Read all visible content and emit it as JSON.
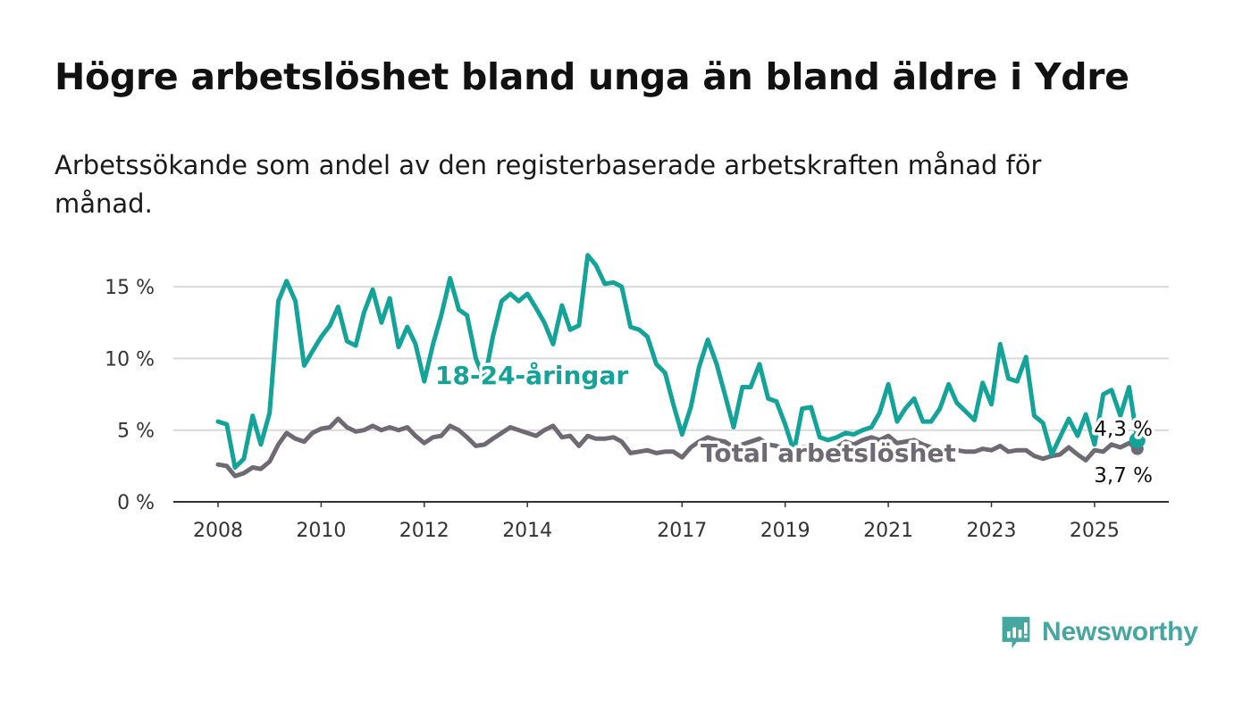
{
  "header": {
    "title": "Högre arbetslöshet bland unga än bland äldre i Ydre",
    "subtitle": "Arbetssökande som andel av den registerbaserade arbetskraften månad för månad."
  },
  "branding": {
    "logo_text": "Newsworthy",
    "color": "#46a6a0"
  },
  "chart_data": {
    "type": "line",
    "title": "Högre arbetslöshet bland unga än bland äldre i Ydre",
    "subtitle": "Arbetssökande som andel av den registerbaserade arbetskraften månad för månad.",
    "ylim": [
      0,
      17
    ],
    "yticks": [
      0,
      5,
      10,
      15
    ],
    "ytick_labels": [
      "0 %",
      "5 %",
      "10 %",
      "15 %"
    ],
    "xticks": [
      2008,
      2010,
      2012,
      2014,
      2017,
      2019,
      2021,
      2023,
      2025
    ],
    "xtick_labels": [
      "2008",
      "2010",
      "2012",
      "2014",
      "2017",
      "2019",
      "2021",
      "2023",
      "2025"
    ],
    "grid": true,
    "series": [
      {
        "name": "18-24-åringar",
        "color": "#13a398",
        "end_label": "4,3 %",
        "points": [
          [
            2008.0,
            5.6
          ],
          [
            2008.17,
            5.4
          ],
          [
            2008.33,
            2.4
          ],
          [
            2008.5,
            3.0
          ],
          [
            2008.67,
            6.0
          ],
          [
            2008.83,
            4.0
          ],
          [
            2009.0,
            6.2
          ],
          [
            2009.17,
            14.0
          ],
          [
            2009.33,
            15.4
          ],
          [
            2009.5,
            14.0
          ],
          [
            2009.67,
            9.5
          ],
          [
            2009.83,
            10.5
          ],
          [
            2010.0,
            11.5
          ],
          [
            2010.17,
            12.3
          ],
          [
            2010.33,
            13.6
          ],
          [
            2010.5,
            11.2
          ],
          [
            2010.67,
            10.9
          ],
          [
            2010.83,
            13.2
          ],
          [
            2011.0,
            14.8
          ],
          [
            2011.17,
            12.5
          ],
          [
            2011.33,
            14.2
          ],
          [
            2011.5,
            10.8
          ],
          [
            2011.67,
            12.2
          ],
          [
            2011.83,
            11.0
          ],
          [
            2012.0,
            8.4
          ],
          [
            2012.17,
            11.0
          ],
          [
            2012.33,
            13.0
          ],
          [
            2012.5,
            15.6
          ],
          [
            2012.67,
            13.4
          ],
          [
            2012.83,
            13.0
          ],
          [
            2013.0,
            10.0
          ],
          [
            2013.17,
            8.5
          ],
          [
            2013.33,
            11.5
          ],
          [
            2013.5,
            14.0
          ],
          [
            2013.67,
            14.5
          ],
          [
            2013.83,
            14.0
          ],
          [
            2014.0,
            14.5
          ],
          [
            2014.17,
            13.5
          ],
          [
            2014.33,
            12.5
          ],
          [
            2014.5,
            11.0
          ],
          [
            2014.67,
            13.7
          ],
          [
            2014.83,
            12.0
          ],
          [
            2015.0,
            12.3
          ],
          [
            2015.17,
            17.2
          ],
          [
            2015.33,
            16.5
          ],
          [
            2015.5,
            15.2
          ],
          [
            2015.67,
            15.3
          ],
          [
            2015.83,
            15.0
          ],
          [
            2016.0,
            12.2
          ],
          [
            2016.17,
            12.0
          ],
          [
            2016.33,
            11.5
          ],
          [
            2016.5,
            9.6
          ],
          [
            2016.67,
            9.0
          ],
          [
            2016.83,
            6.8
          ],
          [
            2017.0,
            4.7
          ],
          [
            2017.17,
            6.6
          ],
          [
            2017.33,
            9.4
          ],
          [
            2017.5,
            11.3
          ],
          [
            2017.67,
            9.6
          ],
          [
            2017.83,
            7.5
          ],
          [
            2018.0,
            5.2
          ],
          [
            2018.17,
            8.0
          ],
          [
            2018.33,
            8.0
          ],
          [
            2018.5,
            9.6
          ],
          [
            2018.67,
            7.2
          ],
          [
            2018.83,
            7.0
          ],
          [
            2019.0,
            5.4
          ],
          [
            2019.17,
            3.5
          ],
          [
            2019.33,
            6.5
          ],
          [
            2019.5,
            6.6
          ],
          [
            2019.67,
            4.5
          ],
          [
            2019.83,
            4.3
          ],
          [
            2020.0,
            4.5
          ],
          [
            2020.17,
            4.8
          ],
          [
            2020.33,
            4.7
          ],
          [
            2020.5,
            5.0
          ],
          [
            2020.67,
            5.2
          ],
          [
            2020.83,
            6.2
          ],
          [
            2021.0,
            8.2
          ],
          [
            2021.17,
            5.6
          ],
          [
            2021.33,
            6.5
          ],
          [
            2021.5,
            7.2
          ],
          [
            2021.67,
            5.6
          ],
          [
            2021.83,
            5.6
          ],
          [
            2022.0,
            6.5
          ],
          [
            2022.17,
            8.2
          ],
          [
            2022.33,
            6.9
          ],
          [
            2022.5,
            6.3
          ],
          [
            2022.67,
            5.7
          ],
          [
            2022.83,
            8.3
          ],
          [
            2023.0,
            6.8
          ],
          [
            2023.17,
            11.0
          ],
          [
            2023.33,
            8.6
          ],
          [
            2023.5,
            8.4
          ],
          [
            2023.67,
            10.1
          ],
          [
            2023.83,
            6.0
          ],
          [
            2024.0,
            5.5
          ],
          [
            2024.17,
            3.3
          ],
          [
            2024.33,
            4.5
          ],
          [
            2024.5,
            5.8
          ],
          [
            2024.67,
            4.6
          ],
          [
            2024.83,
            6.1
          ],
          [
            2025.0,
            4.0
          ],
          [
            2025.17,
            7.5
          ],
          [
            2025.33,
            7.8
          ],
          [
            2025.5,
            6.0
          ],
          [
            2025.67,
            8.0
          ],
          [
            2025.83,
            4.3
          ]
        ]
      },
      {
        "name": "Total arbetslöshet",
        "color": "#6e6a73",
        "end_label": "3,7 %",
        "points": [
          [
            2008.0,
            2.6
          ],
          [
            2008.17,
            2.5
          ],
          [
            2008.33,
            1.8
          ],
          [
            2008.5,
            2.0
          ],
          [
            2008.67,
            2.4
          ],
          [
            2008.83,
            2.3
          ],
          [
            2009.0,
            2.8
          ],
          [
            2009.17,
            4.0
          ],
          [
            2009.33,
            4.8
          ],
          [
            2009.5,
            4.4
          ],
          [
            2009.67,
            4.2
          ],
          [
            2009.83,
            4.8
          ],
          [
            2010.0,
            5.1
          ],
          [
            2010.17,
            5.2
          ],
          [
            2010.33,
            5.8
          ],
          [
            2010.5,
            5.2
          ],
          [
            2010.67,
            4.9
          ],
          [
            2010.83,
            5.0
          ],
          [
            2011.0,
            5.3
          ],
          [
            2011.17,
            5.0
          ],
          [
            2011.33,
            5.2
          ],
          [
            2011.5,
            5.0
          ],
          [
            2011.67,
            5.2
          ],
          [
            2011.83,
            4.6
          ],
          [
            2012.0,
            4.1
          ],
          [
            2012.17,
            4.5
          ],
          [
            2012.33,
            4.6
          ],
          [
            2012.5,
            5.3
          ],
          [
            2012.67,
            5.0
          ],
          [
            2012.83,
            4.5
          ],
          [
            2013.0,
            3.9
          ],
          [
            2013.17,
            4.0
          ],
          [
            2013.33,
            4.4
          ],
          [
            2013.5,
            4.8
          ],
          [
            2013.67,
            5.2
          ],
          [
            2013.83,
            5.0
          ],
          [
            2014.0,
            4.8
          ],
          [
            2014.17,
            4.6
          ],
          [
            2014.33,
            5.0
          ],
          [
            2014.5,
            5.3
          ],
          [
            2014.67,
            4.5
          ],
          [
            2014.83,
            4.6
          ],
          [
            2015.0,
            3.9
          ],
          [
            2015.17,
            4.6
          ],
          [
            2015.33,
            4.4
          ],
          [
            2015.5,
            4.4
          ],
          [
            2015.67,
            4.5
          ],
          [
            2015.83,
            4.2
          ],
          [
            2016.0,
            3.4
          ],
          [
            2016.17,
            3.5
          ],
          [
            2016.33,
            3.6
          ],
          [
            2016.5,
            3.4
          ],
          [
            2016.67,
            3.5
          ],
          [
            2016.83,
            3.5
          ],
          [
            2017.0,
            3.1
          ],
          [
            2017.17,
            3.8
          ],
          [
            2017.33,
            4.2
          ],
          [
            2017.5,
            4.5
          ],
          [
            2017.67,
            4.3
          ],
          [
            2017.83,
            4.2
          ],
          [
            2018.0,
            3.8
          ],
          [
            2018.17,
            4.0
          ],
          [
            2018.33,
            4.2
          ],
          [
            2018.5,
            4.4
          ],
          [
            2018.67,
            4.0
          ],
          [
            2018.83,
            3.9
          ],
          [
            2019.0,
            3.6
          ],
          [
            2019.17,
            3.5
          ],
          [
            2019.33,
            3.8
          ],
          [
            2019.5,
            3.9
          ],
          [
            2019.67,
            3.6
          ],
          [
            2019.83,
            3.5
          ],
          [
            2020.0,
            3.8
          ],
          [
            2020.17,
            4.2
          ],
          [
            2020.33,
            4.0
          ],
          [
            2020.5,
            4.3
          ],
          [
            2020.67,
            4.5
          ],
          [
            2020.83,
            4.3
          ],
          [
            2021.0,
            4.6
          ],
          [
            2021.17,
            4.1
          ],
          [
            2021.33,
            4.2
          ],
          [
            2021.5,
            4.3
          ],
          [
            2021.67,
            4.0
          ],
          [
            2021.83,
            3.8
          ],
          [
            2022.0,
            3.6
          ],
          [
            2022.17,
            3.8
          ],
          [
            2022.33,
            3.6
          ],
          [
            2022.5,
            3.5
          ],
          [
            2022.67,
            3.5
          ],
          [
            2022.83,
            3.7
          ],
          [
            2023.0,
            3.6
          ],
          [
            2023.17,
            3.9
          ],
          [
            2023.33,
            3.5
          ],
          [
            2023.5,
            3.6
          ],
          [
            2023.67,
            3.6
          ],
          [
            2023.83,
            3.2
          ],
          [
            2024.0,
            3.0
          ],
          [
            2024.17,
            3.2
          ],
          [
            2024.33,
            3.3
          ],
          [
            2024.5,
            3.8
          ],
          [
            2024.67,
            3.3
          ],
          [
            2024.83,
            2.9
          ],
          [
            2025.0,
            3.6
          ],
          [
            2025.17,
            3.5
          ],
          [
            2025.33,
            4.0
          ],
          [
            2025.5,
            3.8
          ],
          [
            2025.67,
            4.1
          ],
          [
            2025.83,
            3.7
          ]
        ]
      }
    ]
  }
}
